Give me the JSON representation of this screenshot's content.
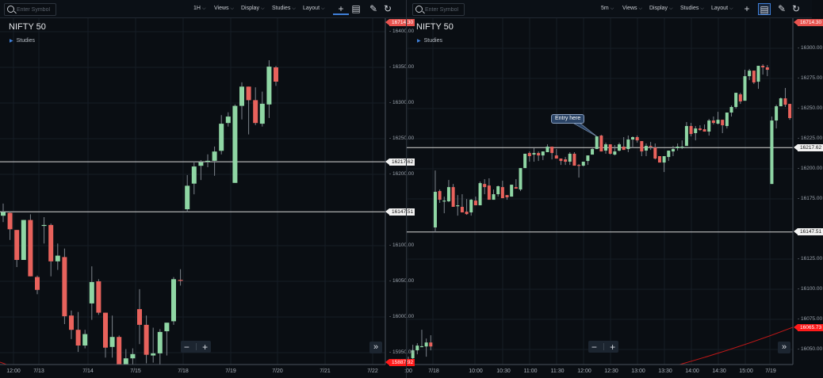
{
  "left": {
    "search_placeholder": "Enter Symbol",
    "interval": "1H",
    "menus": [
      "Views",
      "Display",
      "Studies",
      "Layout"
    ],
    "symbol": "NIFTY 50",
    "studies_label": "Studies",
    "zoom_out": "−",
    "zoom_in": "+",
    "scroll_label": "»"
  },
  "right": {
    "search_placeholder": "Enter Symbol",
    "interval": "5m",
    "menus": [
      "Views",
      "Display",
      "Studies",
      "Layout"
    ],
    "symbol": "NIFTY 50",
    "studies_label": "Studies",
    "zoom_out": "−",
    "zoom_in": "+",
    "scroll_label": "»",
    "annotation": "Entry here"
  },
  "icons": {
    "crosshair": "+",
    "drawing": "✎",
    "reset": "↻",
    "compare": "▤"
  },
  "colors": {
    "up": "#8fd6a4",
    "down": "#e8625c",
    "wick": "#7d848c",
    "grid": "#161d26",
    "hline": "#d8d8d8",
    "accent": "#3f7fd8",
    "projection": "#c01818"
  },
  "chart_data": [
    {
      "type": "candlestick",
      "title": "NIFTY 50",
      "interval": "1H",
      "y_ticks": [
        "16400.00",
        "16350.00",
        "16300.00",
        "16250.00",
        "16200.00",
        "16100.00",
        "16050.00",
        "16000.00",
        "15950.00"
      ],
      "y_tick_values": [
        16400,
        16350,
        16300,
        16250,
        16200,
        16100,
        16050,
        16000,
        15950
      ],
      "x_ticks": [
        "12:00",
        "7/13",
        "7/14",
        "7/15",
        "7/18",
        "7/19",
        "7/20",
        "7/21",
        "7/22"
      ],
      "last_price_label": "16714.30",
      "bottom_price_label": "15887.92",
      "hlines": [
        {
          "value": 16217.62,
          "label": "16217.62"
        },
        {
          "value": 16147.51,
          "label": "16147.51"
        }
      ],
      "candles_ohlc": [
        [
          16142,
          16159,
          16133,
          16147
        ],
        [
          16146,
          16148,
          16108,
          16123
        ],
        [
          16122,
          16122,
          16070,
          16080
        ],
        [
          16080,
          16136,
          16080,
          16136
        ],
        [
          16136,
          16144,
          16057,
          16057
        ],
        [
          16056,
          16058,
          16032,
          16038
        ],
        [
          16128,
          16140,
          16103,
          16129
        ],
        [
          16129,
          16131,
          16057,
          16078
        ],
        [
          16078,
          16103,
          16066,
          16086
        ],
        [
          16084,
          16096,
          15990,
          16001
        ],
        [
          16002,
          16009,
          15969,
          15982
        ],
        [
          15982,
          16007,
          15951,
          15960
        ],
        [
          15960,
          15982,
          15956,
          15976
        ],
        [
          16019,
          16071,
          15996,
          16049
        ],
        [
          16050,
          16053,
          16003,
          16006
        ],
        [
          16006,
          16006,
          15943,
          15957
        ],
        [
          15958,
          16002,
          15943,
          15972
        ],
        [
          15972,
          15974,
          15920,
          15925
        ],
        [
          15931,
          15955,
          15928,
          15942
        ],
        [
          15942,
          15956,
          15933,
          15948
        ],
        [
          16011,
          16039,
          15962,
          15989
        ],
        [
          15989,
          16002,
          15935,
          15947
        ],
        [
          15946,
          15985,
          15936,
          15949
        ],
        [
          15949,
          15983,
          15931,
          15979
        ],
        [
          15980,
          15992,
          15946,
          15992
        ],
        [
          15994,
          16056,
          15989,
          16053
        ],
        [
          16052,
          16067,
          16044,
          16051
        ],
        [
          16151,
          16199,
          16147,
          16184
        ],
        [
          16187,
          16218,
          16172,
          16211
        ],
        [
          16212,
          16220,
          16192,
          16217
        ],
        [
          16218,
          16228,
          16210,
          16219
        ],
        [
          16219,
          16239,
          16198,
          16232
        ],
        [
          16233,
          16283,
          16228,
          16271
        ],
        [
          16272,
          16287,
          16267,
          16281
        ],
        [
          16188,
          16298,
          16188,
          16296
        ],
        [
          16296,
          16329,
          16277,
          16323
        ],
        [
          16323,
          16323,
          16256,
          16304
        ],
        [
          16304,
          16322,
          16269,
          16272
        ],
        [
          16271,
          16316,
          16267,
          16299
        ],
        [
          16298,
          16360,
          16279,
          16351
        ],
        [
          16350,
          16352,
          16324,
          16330
        ]
      ]
    },
    {
      "type": "candlestick",
      "title": "NIFTY 50",
      "interval": "5m",
      "y_ticks": [
        "16300.00",
        "16275.00",
        "16250.00",
        "16225.00",
        "16200.00",
        "16175.00",
        "16125.00",
        "16100.00",
        "16075.00",
        "16050.00"
      ],
      "y_tick_values": [
        16300,
        16275,
        16250,
        16225,
        16200,
        16175,
        16125,
        16100,
        16075,
        16050
      ],
      "x_ticks": [
        ":00",
        "7/18",
        "10:00",
        "10:30",
        "11:00",
        "11:30",
        "12:00",
        "12:30",
        "13:00",
        "13:30",
        "14:00",
        "14:30",
        "15:00",
        "7/19"
      ],
      "last_price_label": "16714.30",
      "bottom_price_label": "16065.73",
      "hlines": [
        {
          "value": 16217.62,
          "label": "16217.62"
        },
        {
          "value": 16147.51,
          "label": "16147.51"
        }
      ],
      "annotation": {
        "text": "Entry here",
        "candle_index": 42
      },
      "candles_ohlc": [
        [
          16042,
          16044,
          16035,
          16036.8
        ],
        [
          16042.7,
          16053.9,
          16042,
          16049.3
        ],
        [
          16049.3,
          16055.2,
          16046,
          16053.2
        ],
        [
          16052.5,
          16066.4,
          16051.9,
          16052.7
        ],
        [
          16052.5,
          16059.1,
          16044,
          16055.8
        ],
        [
          16055.8,
          16061.8,
          16049.3,
          16052.5
        ],
        [
          16151.3,
          16198.6,
          16147.3,
          16180.9
        ],
        [
          16181.5,
          16182.8,
          16171.7,
          16174.3
        ],
        [
          16173,
          16176.9,
          16163.1,
          16173.6
        ],
        [
          16173,
          16190.7,
          16172.3,
          16184.8
        ],
        [
          16184.8,
          16187.4,
          16168.4,
          16168.4
        ],
        [
          16169,
          16178.2,
          16161.1,
          16169.7
        ],
        [
          16168.4,
          16178.9,
          16163.8,
          16163.8
        ],
        [
          16164.4,
          16174.9,
          16161.8,
          16162.4
        ],
        [
          16163.8,
          16174.9,
          16161.1,
          16174.3
        ],
        [
          16173.6,
          16176.9,
          16169.7,
          16169.7
        ],
        [
          16169.7,
          16189.4,
          16169.7,
          16188.1
        ],
        [
          16187.4,
          16191.4,
          16178.9,
          16184.8
        ],
        [
          16186.1,
          16192.1,
          16174.3,
          16174.3
        ],
        [
          16174.3,
          16182.8,
          16174.3,
          16178.9
        ],
        [
          16178.9,
          16186.1,
          16176.9,
          16185.5
        ],
        [
          16184.8,
          16190.1,
          16175.6,
          16175.6
        ],
        [
          16178.2,
          16178.2,
          16174.3,
          16176.3
        ],
        [
          16176.9,
          16186.8,
          16176.9,
          16186.8
        ],
        [
          16184.8,
          16191.4,
          16183.5,
          16183.5
        ],
        [
          16182.8,
          16200.6,
          16181.5,
          16200.6
        ],
        [
          16200.6,
          16212.5,
          16200.6,
          16212.5
        ],
        [
          16213.1,
          16214.4,
          16205.9,
          16210.5
        ],
        [
          16211.8,
          16217.1,
          16205.9,
          16213.1
        ],
        [
          16213.1,
          16214.4,
          16206.5,
          16211.1
        ],
        [
          16211.1,
          16214.4,
          16207.2,
          16214.4
        ],
        [
          16213.8,
          16220.3,
          16213.8,
          16218.4
        ],
        [
          16218.4,
          16218.4,
          16207.8,
          16213.1
        ],
        [
          16211.1,
          16216.4,
          16208.5,
          16208.5
        ],
        [
          16208.5,
          16208.5,
          16203.2,
          16206.5
        ],
        [
          16207.8,
          16209.8,
          16203.2,
          16205.9
        ],
        [
          16205.9,
          16213.8,
          16203.2,
          16212.5
        ],
        [
          16212.5,
          16213.8,
          16202.6,
          16202.6
        ],
        [
          16203.2,
          16203.9,
          16192.7,
          16202.6
        ],
        [
          16202.6,
          16205.9,
          16201.9,
          16205.9
        ],
        [
          16206.5,
          16211.1,
          16203.2,
          16211.1
        ],
        [
          16211.8,
          16217.1,
          16211.8,
          16216.4
        ],
        [
          16216.4,
          16226.9,
          16216.4,
          16226.9
        ],
        [
          16227.6,
          16228.2,
          16214.4,
          16214.4
        ],
        [
          16215.1,
          16221.7,
          16212.5,
          16220.3
        ],
        [
          16220.3,
          16220.3,
          16211.8,
          16212.5
        ],
        [
          16211.8,
          16219.7,
          16211.1,
          16214.4
        ],
        [
          16215.1,
          16221.7,
          16214.4,
          16220.3
        ],
        [
          16218.4,
          16226.3,
          16215.7,
          16215.7
        ],
        [
          16216.4,
          16227.6,
          16213.8,
          16224.3
        ],
        [
          16224.3,
          16226.9,
          16217.1,
          16226.3
        ],
        [
          16226.3,
          16227.6,
          16221.7,
          16223.6
        ],
        [
          16223,
          16223,
          16210.5,
          16214.4
        ],
        [
          16215.1,
          16221,
          16210.5,
          16219
        ],
        [
          16219,
          16222.3,
          16215.7,
          16218.4
        ],
        [
          16217.7,
          16221,
          16207.8,
          16208.5
        ],
        [
          16210.5,
          16210.5,
          16205.2,
          16205.2
        ],
        [
          16205.2,
          16210.5,
          16197.3,
          16210.5
        ],
        [
          16209.8,
          16215.1,
          16206.5,
          16215.1
        ],
        [
          16214.4,
          16219,
          16210.5,
          16216.4
        ],
        [
          16217.1,
          16221,
          16215.1,
          16218.4
        ],
        [
          16217.7,
          16223.6,
          16216.4,
          16218.4
        ],
        [
          16219,
          16238.8,
          16219,
          16235.5
        ],
        [
          16235.5,
          16238.1,
          16226.9,
          16228.9
        ],
        [
          16229.6,
          16235.5,
          16223.6,
          16233.5
        ],
        [
          16233.5,
          16236.1,
          16231.5,
          16232.2
        ],
        [
          16232.8,
          16236.8,
          16230.9,
          16230.9
        ],
        [
          16230.9,
          16241.4,
          16227.6,
          16240.1
        ],
        [
          16240.1,
          16243.4,
          16236.8,
          16238.1
        ],
        [
          16237.5,
          16247.3,
          16236.8,
          16240.7
        ],
        [
          16240.7,
          16240.7,
          16229.6,
          16236.1
        ],
        [
          16235.5,
          16246.7,
          16233.5,
          16246.7
        ],
        [
          16246.7,
          16252.6,
          16243.4,
          16251.3
        ],
        [
          16251.3,
          16263.1,
          16250,
          16263.1
        ],
        [
          16261.8,
          16263.1,
          16253.9,
          16255.9
        ],
        [
          16256.5,
          16282.2,
          16256.5,
          16276.9
        ],
        [
          16276.9,
          16282.9,
          16273.6,
          16281.5
        ],
        [
          16281.5,
          16281.5,
          16270.4,
          16271.7
        ],
        [
          16272.3,
          16285.5,
          16266.4,
          16285.5
        ],
        [
          16285.5,
          16286.8,
          16278.2,
          16284.2
        ],
        [
          16284.2,
          16286.1,
          16276.9,
          16282.2
        ],
        [
          16187.4,
          16243.4,
          16187.4,
          16240.1
        ],
        [
          16240.1,
          16253.2,
          16233.5,
          16251.9
        ],
        [
          16251.9,
          16259.2,
          16251.9,
          16258.5
        ],
        [
          16258.5,
          16267.1,
          16251.3,
          16253.2
        ],
        [
          16253.9,
          16253.9,
          16240.7,
          16242.1
        ],
        [
          16242.1,
          16265.1,
          16242.1,
          16265.1
        ]
      ]
    }
  ]
}
